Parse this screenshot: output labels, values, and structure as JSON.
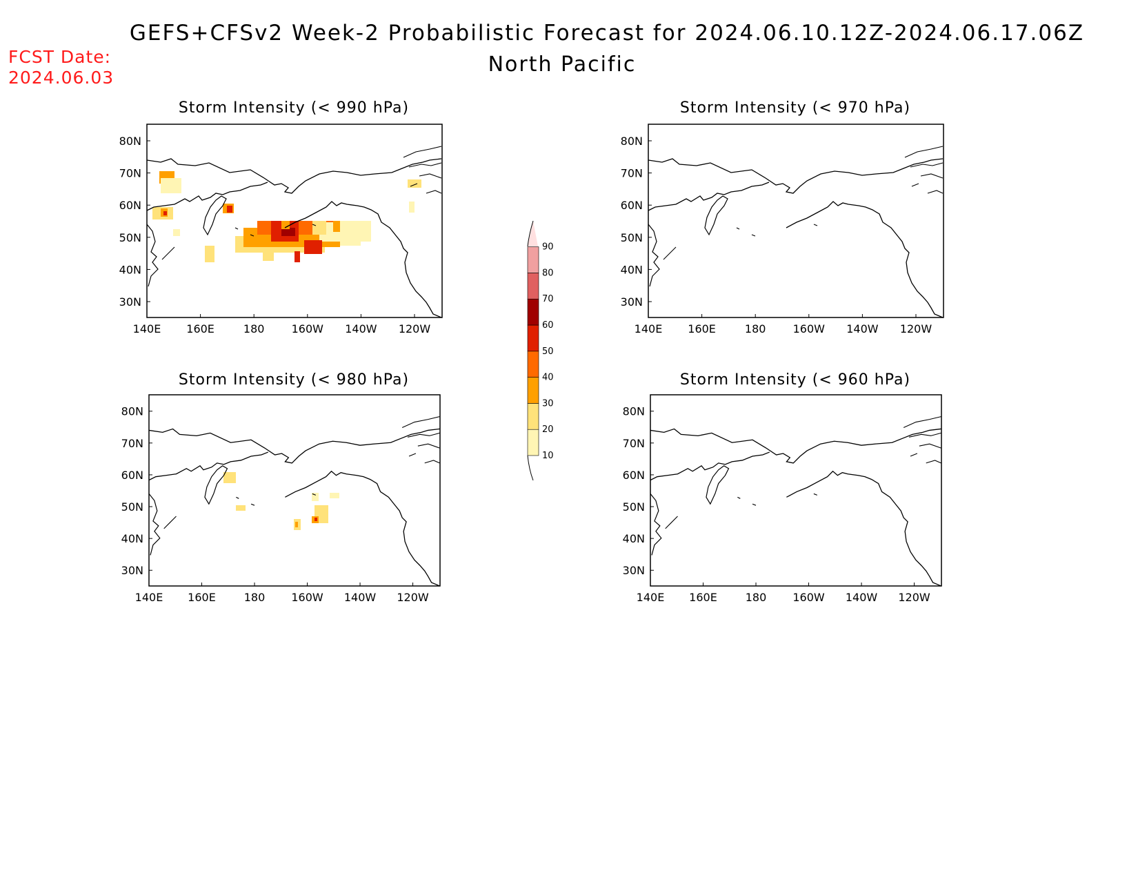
{
  "header": {
    "title": "GEFS+CFSv2 Week-2 Probabilistic Forecast for 2024.06.10.12Z-2024.06.17.06Z",
    "subtitle": "North Pacific",
    "fcst_label": "FCST Date:",
    "fcst_date": "2024.06.03",
    "fcst_color": "#ff1a1a"
  },
  "axes": {
    "lon_ticks": [
      "140E",
      "160E",
      "180",
      "160W",
      "140W",
      "120W"
    ],
    "lat_ticks": [
      "80N",
      "70N",
      "60N",
      "50N",
      "40N",
      "30N"
    ]
  },
  "panels": [
    {
      "id": "p990",
      "title": "Storm Intensity (< 990 hPa)",
      "has_data": true
    },
    {
      "id": "p970",
      "title": "Storm Intensity (< 970 hPa)",
      "has_data": false
    },
    {
      "id": "p980",
      "title": "Storm Intensity (< 980 hPa)",
      "has_data": true
    },
    {
      "id": "p960",
      "title": "Storm Intensity (< 960 hPa)",
      "has_data": false
    }
  ],
  "colorbar": {
    "levels": [
      "10",
      "20",
      "30",
      "40",
      "50",
      "60",
      "70",
      "80",
      "90"
    ],
    "colors": [
      "#fff5b4",
      "#ffe27a",
      "#ffa000",
      "#ff6a00",
      "#e02000",
      "#a00000",
      "#e06060",
      "#f0a0a0",
      "#ffe0e0"
    ]
  }
}
